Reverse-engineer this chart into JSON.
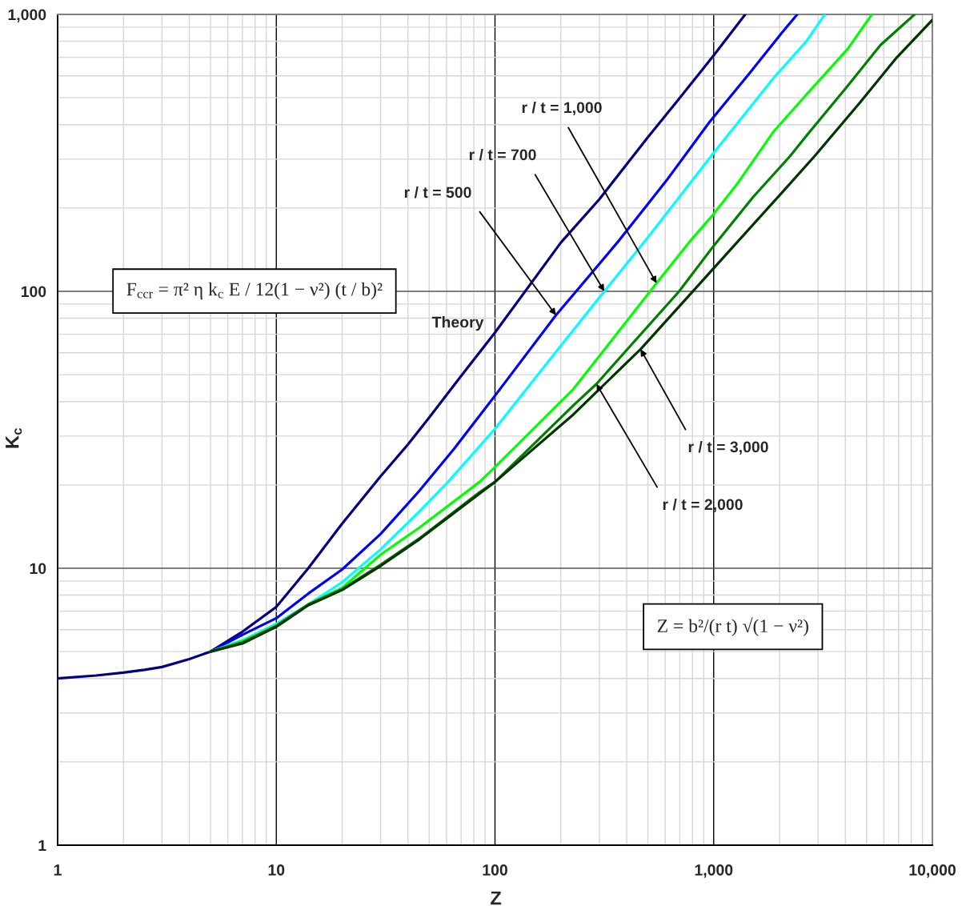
{
  "chart_data": {
    "type": "line",
    "xlabel": "Z",
    "ylabel": "K$_{c}$",
    "log": "xy",
    "xlim": [
      1,
      10000
    ],
    "ylim": [
      1,
      1000
    ],
    "xticks": [
      1,
      10,
      100,
      {
        "value": 1000,
        "label": "1,000"
      },
      {
        "value": 10000,
        "label": "10,000"
      }
    ],
    "yticks": [
      1,
      10,
      100,
      {
        "value": 1000,
        "label": "1,000"
      }
    ],
    "grid": true,
    "series": [
      {
        "color": "#000080",
        "x": [
          1,
          1.5,
          2,
          2.5,
          3,
          4,
          5,
          7,
          10,
          14,
          20,
          30,
          40,
          50,
          70,
          100,
          200,
          300,
          500,
          700,
          1000,
          1394
        ],
        "values": [
          4.0,
          4.1,
          4.2,
          4.3,
          4.4,
          4.7,
          5.0,
          5.9,
          7.25,
          10,
          14.5,
          21.5,
          28,
          35,
          49.5,
          71,
          150,
          215,
          360,
          500,
          711,
          1000
        ]
      },
      {
        "color": "#0000ff",
        "x": [
          5,
          7,
          10,
          14,
          20,
          30,
          45,
          65,
          100,
          190,
          235,
          370,
          610,
          955,
          1451,
          2049,
          2410
        ],
        "values": [
          5.0,
          5.75,
          6.6,
          8.1,
          9.9,
          13.3,
          19,
          27,
          42,
          82,
          100,
          153,
          252,
          408,
          610,
          858,
          1000
        ]
      },
      {
        "color": "#00ffff",
        "x": [
          5,
          7,
          10,
          14,
          20,
          30,
          45,
          61,
          100,
          200,
          316,
          489,
          993,
          1330,
          1881,
          2657,
          3220
        ],
        "values": [
          5.0,
          5.5,
          6.3,
          7.4,
          8.9,
          11.7,
          16,
          20.5,
          31.9,
          63.6,
          100,
          153,
          314,
          419,
          590,
          801,
          1000
        ]
      },
      {
        "color": "#00ff00",
        "x": [
          5,
          7,
          10,
          14,
          20,
          30,
          45,
          85,
          100,
          228,
          548,
          787,
          993,
          1274,
          1881,
          2657,
          4093,
          5290
        ],
        "values": [
          5.0,
          5.45,
          6.2,
          7.4,
          8.5,
          11.2,
          14.0,
          20.5,
          23.2,
          44.3,
          107,
          153,
          189,
          243,
          378,
          514,
          749,
          1000
        ]
      },
      {
        "color": "#008000",
        "x": [
          5,
          7,
          10,
          14,
          20,
          30,
          45,
          85,
          100,
          228,
          291,
          695,
          1000,
          1514,
          2236,
          2657,
          4093,
          5781,
          8290
        ],
        "values": [
          5.0,
          5.4,
          6.2,
          7.4,
          8.4,
          10.3,
          12.8,
          18.8,
          20.5,
          38.7,
          46.3,
          100,
          146,
          219,
          308,
          365,
          551,
          774,
          1000
        ]
      },
      {
        "color": "#003300",
        "x": [
          5,
          7,
          10,
          14,
          20,
          30,
          45,
          85,
          100,
          228,
          463,
          1008,
          2049,
          2895,
          4661,
          6873,
          10000
        ],
        "values": [
          5.0,
          5.35,
          6.15,
          7.35,
          8.35,
          10.2,
          12.7,
          18.6,
          20.5,
          35.9,
          61.8,
          122,
          227,
          308,
          480,
          699,
          955
        ]
      }
    ],
    "annotations": [
      "F$_{ccr}$ = π² η k$_{c}$ E / 12(1 − ν²) (t / b)²",
      {
        "text": "r / t = 1,000",
        "x": 548,
        "y": 107
      },
      {
        "text": "r / t = 700",
        "x": 316,
        "y": 100
      },
      {
        "text": "r / t = 500",
        "x": 190,
        "y": 82
      },
      "Theory",
      {
        "text": "r / t = 3,000",
        "x": 463,
        "y": 61.8
      },
      {
        "text": "r / t = 2,000",
        "x": 291,
        "y": 46.3
      },
      "Z = b²/(r t) √(1 − ν²)"
    ]
  }
}
